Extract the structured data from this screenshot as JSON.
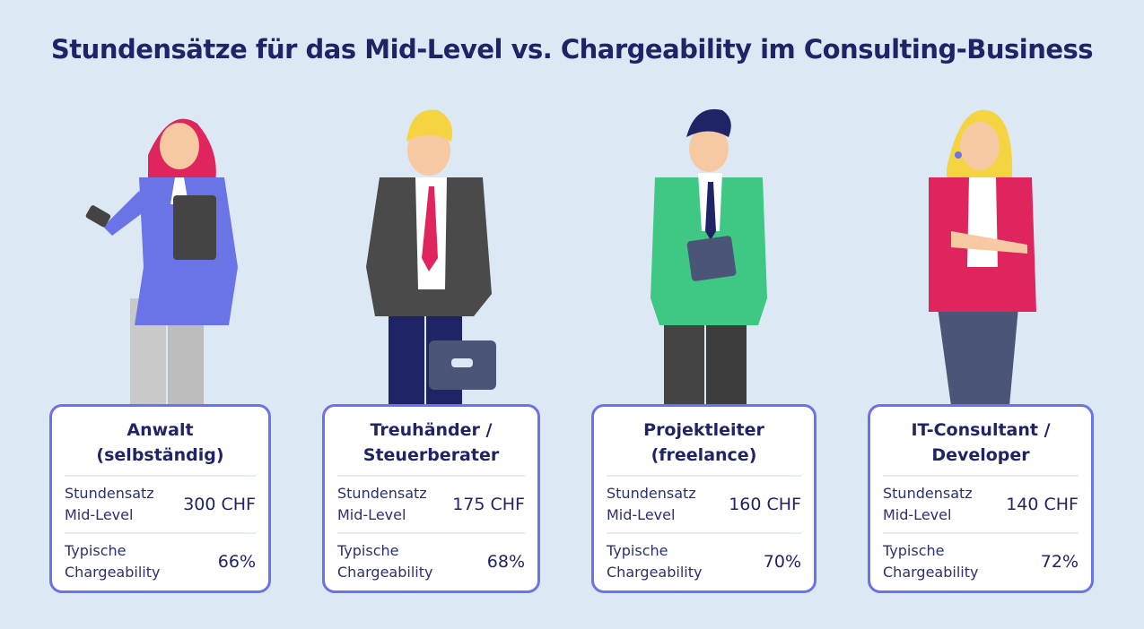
{
  "title": "Stundensätze für das Mid-Level vs. Chargeability im Consulting-Business",
  "row_labels": {
    "rate_line1": "Stundensatz",
    "rate_line2": "Mid-Level",
    "charge_line1": "Typische",
    "charge_line2": "Chargeability"
  },
  "cards": [
    {
      "title_line1": "Anwalt",
      "title_line2": "(selbständig)",
      "rate": "300 CHF",
      "chargeability": "66%"
    },
    {
      "title_line1": "Treuhänder /",
      "title_line2": "Steuerberater",
      "rate": "175 CHF",
      "chargeability": "68%"
    },
    {
      "title_line1": "Projektleiter",
      "title_line2": "(freelance)",
      "rate": "160 CHF",
      "chargeability": "70%"
    },
    {
      "title_line1": "IT-Consultant /",
      "title_line2": "Developer",
      "rate": "140 CHF",
      "chargeability": "72%"
    }
  ],
  "colors": {
    "background": "#dde8f5",
    "card_border": "#6b74e6",
    "text": "#1f2466"
  }
}
